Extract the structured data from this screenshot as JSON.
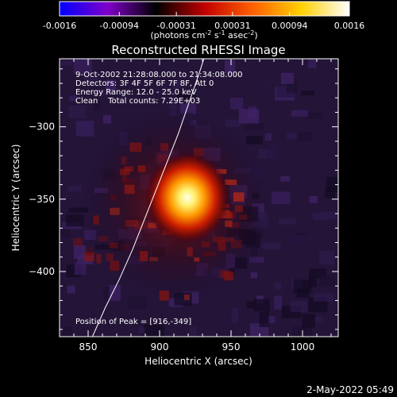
{
  "colorbar": {
    "tick_labels": [
      "-0.0016",
      "-0.00094",
      "-0.00031",
      "0.00031",
      "0.00094",
      "0.0016"
    ],
    "tick_values": [
      -0.0016,
      -0.00094,
      -0.00031,
      0.00031,
      0.00094,
      0.0016
    ],
    "units_pre": "(photons cm",
    "units_sup1": "-2",
    "units_mid": " s",
    "units_sup2": "-1",
    "units_post": " asec",
    "units_sup3": "-2",
    "units_close": ")",
    "range": [
      -0.0016,
      0.0016
    ],
    "colors": [
      "#0000ff",
      "#8000c8",
      "#000000",
      "#c00000",
      "#ff6000",
      "#ffd000",
      "#ffffff"
    ]
  },
  "chart_data": {
    "type": "heatmap",
    "title": "Reconstructed RHESSI Image",
    "xlabel": "Heliocentric X (arcsec)",
    "ylabel": "Heliocentric Y (arcsec)",
    "xlim": [
      830,
      1025
    ],
    "ylim": [
      -445,
      -253
    ],
    "x_ticks": [
      850,
      900,
      950,
      1000
    ],
    "x_tick_labels": [
      "850",
      "900",
      "950",
      "1000"
    ],
    "y_ticks": [
      -300,
      -350,
      -400
    ],
    "y_tick_labels": [
      "-300",
      "-350",
      "-400"
    ],
    "peak": {
      "x": 916,
      "y": -349
    },
    "annotations": [
      "9-Oct-2002 21:28:08.000 to 21:34:08.000",
      "Detectors: 3F 4F 5F 6F 7F 8F, Att 0",
      "Energy Range: 12.0 - 25.0 keV",
      "Clean    Total counts: 7.29E+03"
    ],
    "peak_label": "Position of Peak = [916,-349]",
    "limb_curve": [
      [
        853,
        -445
      ],
      [
        862,
        -425
      ],
      [
        872,
        -405
      ],
      [
        881,
        -385
      ],
      [
        889,
        -365
      ],
      [
        897,
        -345
      ],
      [
        905,
        -325
      ],
      [
        913,
        -305
      ],
      [
        920,
        -285
      ],
      [
        927,
        -265
      ],
      [
        931,
        -253
      ]
    ]
  },
  "footer": {
    "timestamp": "2-May-2022 05:49"
  }
}
